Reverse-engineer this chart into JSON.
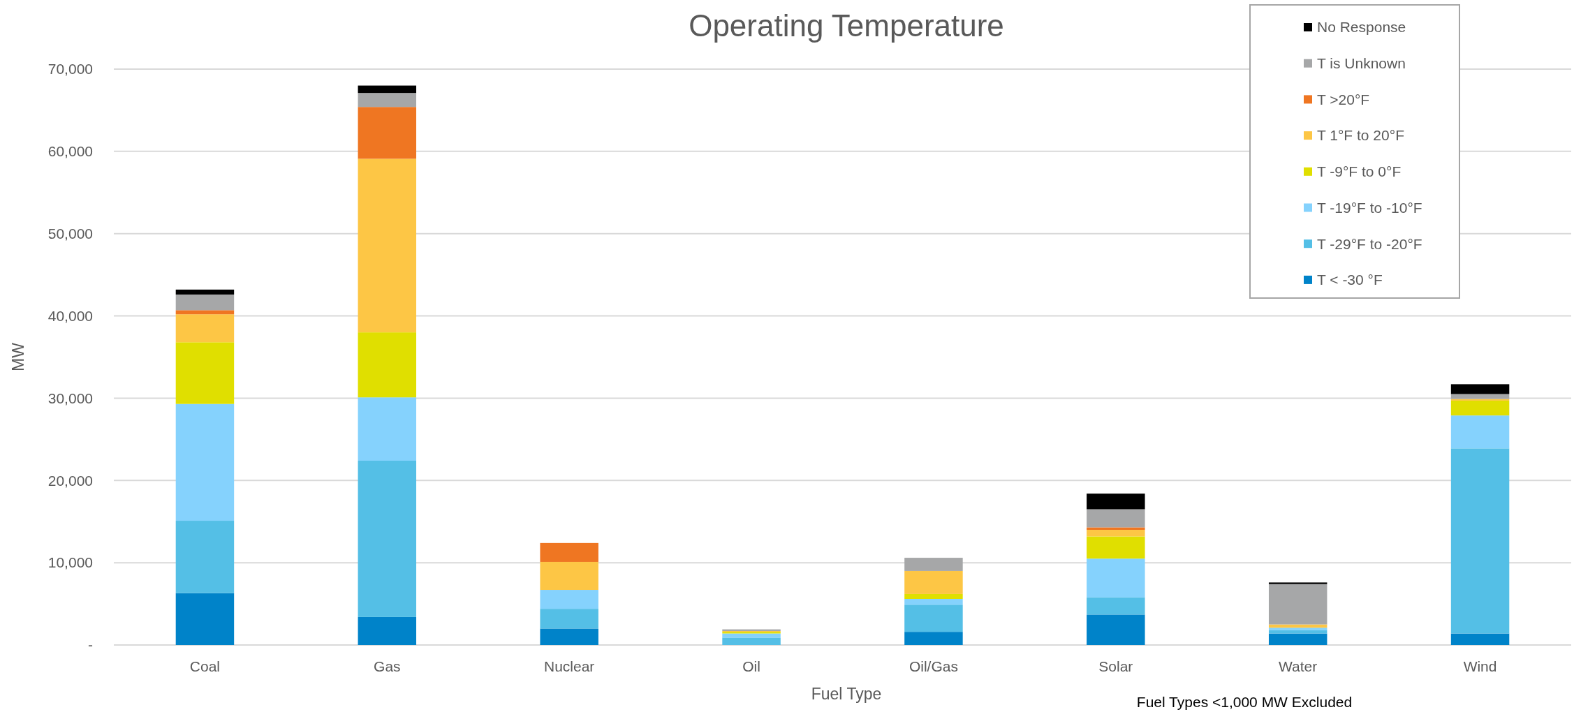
{
  "chart_data": {
    "type": "bar",
    "title": "Operating Temperature",
    "xlabel": "Fuel Type",
    "ylabel": "MW",
    "categories": [
      "Coal",
      "Gas",
      "Nuclear",
      "Oil",
      "Oil/Gas",
      "Solar",
      "Water",
      "Wind"
    ],
    "stacked": true,
    "grid": "y",
    "legend": "top right",
    "ylim": [
      0,
      70000
    ],
    "yticks": [
      {
        "value": 0,
        "label": "-"
      },
      {
        "value": 10000,
        "label": "10,000"
      },
      {
        "value": 20000,
        "label": "20,000"
      },
      {
        "value": 30000,
        "label": "30,000"
      },
      {
        "value": 40000,
        "label": "40,000"
      },
      {
        "value": 50000,
        "label": "50,000"
      },
      {
        "value": 60000,
        "label": "60,000"
      },
      {
        "value": 70000,
        "label": "70,000"
      }
    ],
    "series": [
      {
        "name": "T < -30 °F",
        "color": "#0083c9",
        "values": [
          6300,
          3400,
          2000,
          0,
          1600,
          3700,
          1400,
          1400
        ]
      },
      {
        "name": "T -29°F to -20°F",
        "color": "#54bfe6",
        "values": [
          8800,
          19000,
          2400,
          900,
          3300,
          2100,
          400,
          22500
        ]
      },
      {
        "name": "T -19°F to -10°F",
        "color": "#85d2fd",
        "values": [
          14200,
          7700,
          2300,
          500,
          700,
          4700,
          300,
          4000
        ]
      },
      {
        "name": "T -9°F to 0°F",
        "color": "#e0df00",
        "values": [
          7500,
          7900,
          0,
          200,
          600,
          2700,
          0,
          1800
        ]
      },
      {
        "name": "T 1°F to 20°F",
        "color": "#fdc645",
        "values": [
          3400,
          21100,
          3400,
          100,
          2800,
          800,
          400,
          200
        ]
      },
      {
        "name": "T >20°F",
        "color": "#ef7622",
        "values": [
          500,
          6300,
          2300,
          0,
          0,
          300,
          0,
          0
        ]
      },
      {
        "name": "T is Unknown",
        "color": "#a6a7a8",
        "values": [
          1900,
          1700,
          0,
          200,
          1600,
          2200,
          4900,
          600
        ]
      },
      {
        "name": "No Response",
        "color": "#000000",
        "values": [
          600,
          900,
          0,
          0,
          0,
          1900,
          200,
          1200
        ]
      }
    ],
    "annotations": [
      "Fuel Types <1,000 MW Excluded"
    ]
  }
}
